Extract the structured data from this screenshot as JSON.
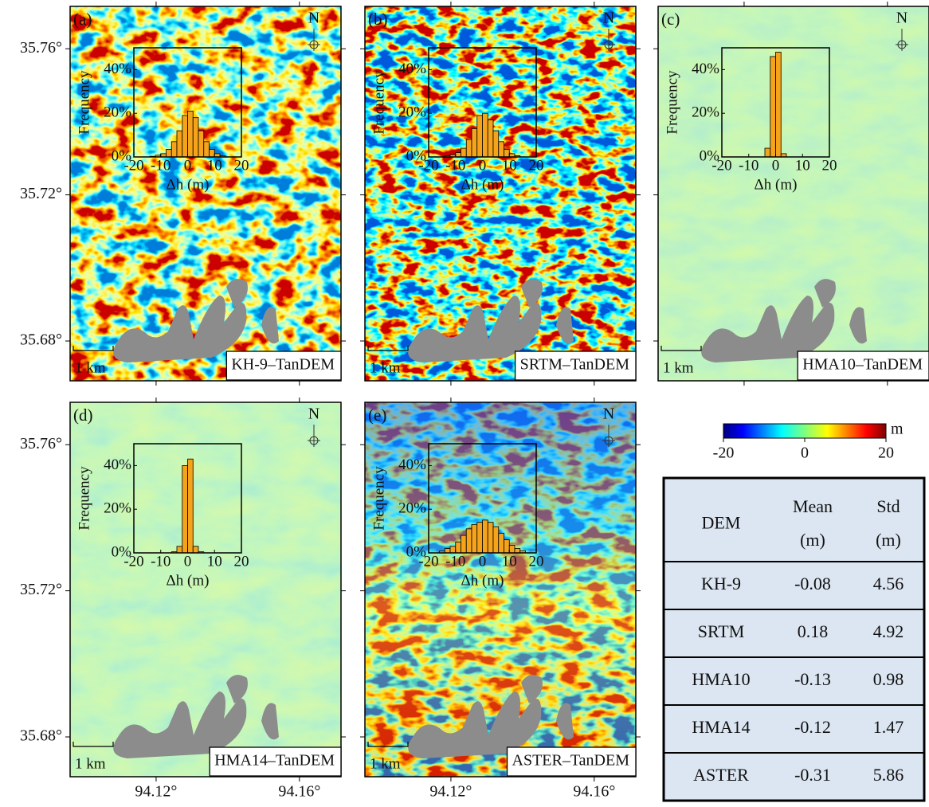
{
  "chart_data": [
    {
      "type": "histogram",
      "xlabel": "Δh (m)",
      "ylabel": "Frequency",
      "color": "#f5a31a",
      "bins": [
        -14,
        -12,
        -10,
        -8,
        -6,
        -4,
        -2,
        0,
        2,
        4,
        6,
        8,
        10,
        12,
        14
      ],
      "values": [
        0.3,
        0.8,
        1.5,
        3.5,
        7,
        12,
        19,
        21,
        18,
        12,
        7,
        3.5,
        1.5,
        0.5
      ],
      "xlim": [
        -20,
        20
      ],
      "ylim": [
        0,
        50
      ],
      "xticks": [
        -20,
        -10,
        0,
        10,
        20
      ],
      "yticks": [
        {
          "value": 0,
          "label": "0%"
        },
        {
          "value": 20,
          "label": "20%"
        },
        {
          "value": 40,
          "label": "40%"
        }
      ]
    },
    {
      "type": "histogram",
      "xlabel": "Δh (m)",
      "ylabel": "Frequency",
      "color": "#f5a31a",
      "bins": [
        -14,
        -12,
        -10,
        -8,
        -6,
        -4,
        -2,
        0,
        2,
        4,
        6,
        8,
        10,
        12,
        14
      ],
      "values": [
        0.5,
        1,
        2,
        4,
        8,
        13,
        19,
        20,
        17,
        12,
        7,
        3.5,
        1.5,
        0.6
      ],
      "xlim": [
        -20,
        20
      ],
      "ylim": [
        0,
        50
      ],
      "xticks": [
        -20,
        -10,
        0,
        10,
        20
      ],
      "yticks": [
        {
          "value": 0,
          "label": "0%"
        },
        {
          "value": 20,
          "label": "20%"
        },
        {
          "value": 40,
          "label": "40%"
        }
      ]
    },
    {
      "type": "histogram",
      "xlabel": "Δh (m)",
      "ylabel": "Frequency",
      "color": "#f5a31a",
      "bins": [
        -4,
        -2,
        0,
        2,
        4
      ],
      "values": [
        4,
        46,
        48,
        1.5
      ],
      "xlim": [
        -20,
        20
      ],
      "ylim": [
        0,
        50
      ],
      "xticks": [
        -20,
        -10,
        0,
        10,
        20
      ],
      "yticks": [
        {
          "value": 0,
          "label": "0%"
        },
        {
          "value": 20,
          "label": "20%"
        },
        {
          "value": 40,
          "label": "40%"
        }
      ]
    },
    {
      "type": "histogram",
      "xlabel": "Δh (m)",
      "ylabel": "Frequency",
      "color": "#f5a31a",
      "bins": [
        -6,
        -4,
        -2,
        0,
        2,
        4,
        6
      ],
      "values": [
        0.5,
        3,
        40,
        43,
        3,
        0.5
      ],
      "xlim": [
        -20,
        20
      ],
      "ylim": [
        0,
        50
      ],
      "xticks": [
        -20,
        -10,
        0,
        10,
        20
      ],
      "yticks": [
        {
          "value": 0,
          "label": "0%"
        },
        {
          "value": 20,
          "label": "20%"
        },
        {
          "value": 40,
          "label": "40%"
        }
      ]
    },
    {
      "type": "histogram",
      "xlabel": "Δh (m)",
      "ylabel": "Frequency",
      "color": "#f5a31a",
      "bins": [
        -16,
        -14,
        -12,
        -10,
        -8,
        -6,
        -4,
        -2,
        0,
        2,
        4,
        6,
        8,
        10,
        12,
        14,
        16
      ],
      "values": [
        0.8,
        2,
        3,
        5,
        8,
        11,
        13,
        14,
        15,
        14,
        12,
        9,
        6,
        3.5,
        2,
        1
      ],
      "xlim": [
        -20,
        20
      ],
      "ylim": [
        0,
        50
      ],
      "xticks": [
        -20,
        -10,
        0,
        10,
        20
      ],
      "yticks": [
        {
          "value": 0,
          "label": "0%"
        },
        {
          "value": 20,
          "label": "20%"
        },
        {
          "value": 40,
          "label": "40%"
        }
      ]
    }
  ],
  "maps": {
    "xlim": [
      94.096,
      94.1716
    ],
    "ylim": [
      35.6691,
      35.7716
    ],
    "xticks": [
      {
        "value": 94.12,
        "label": "94.12°"
      },
      {
        "value": 94.16,
        "label": "94.16°"
      }
    ],
    "yticks": [
      {
        "value": 35.76,
        "label": "35.76°"
      },
      {
        "value": 35.72,
        "label": "35.72°"
      },
      {
        "value": 35.68,
        "label": "35.68°"
      }
    ],
    "north": "N",
    "scale_bar": "1 km",
    "panels": [
      {
        "label": "(a)",
        "name": "KH-9–TanDEM"
      },
      {
        "label": "(b)",
        "name": "SRTM–TanDEM"
      },
      {
        "label": "(c)",
        "name": "HMA10–TanDEM"
      },
      {
        "label": "(d)",
        "name": "HMA14–TanDEM"
      },
      {
        "label": "(e)",
        "name": "ASTER–TanDEM"
      }
    ]
  },
  "colorbar": {
    "lim": [
      -20,
      20
    ],
    "ticks": [
      -20,
      0,
      20
    ],
    "unit": "m"
  },
  "table": {
    "header": [
      [
        "DEM"
      ],
      [
        "Mean",
        "(m)"
      ],
      [
        "Std",
        "(m)"
      ]
    ],
    "rows": [
      [
        "KH-9",
        "-0.08",
        "4.56"
      ],
      [
        "SRTM",
        "0.18",
        "4.92"
      ],
      [
        "HMA10",
        "-0.13",
        "0.98"
      ],
      [
        "HMA14",
        "-0.12",
        "1.47"
      ],
      [
        "ASTER",
        "-0.31",
        "5.86"
      ]
    ]
  }
}
